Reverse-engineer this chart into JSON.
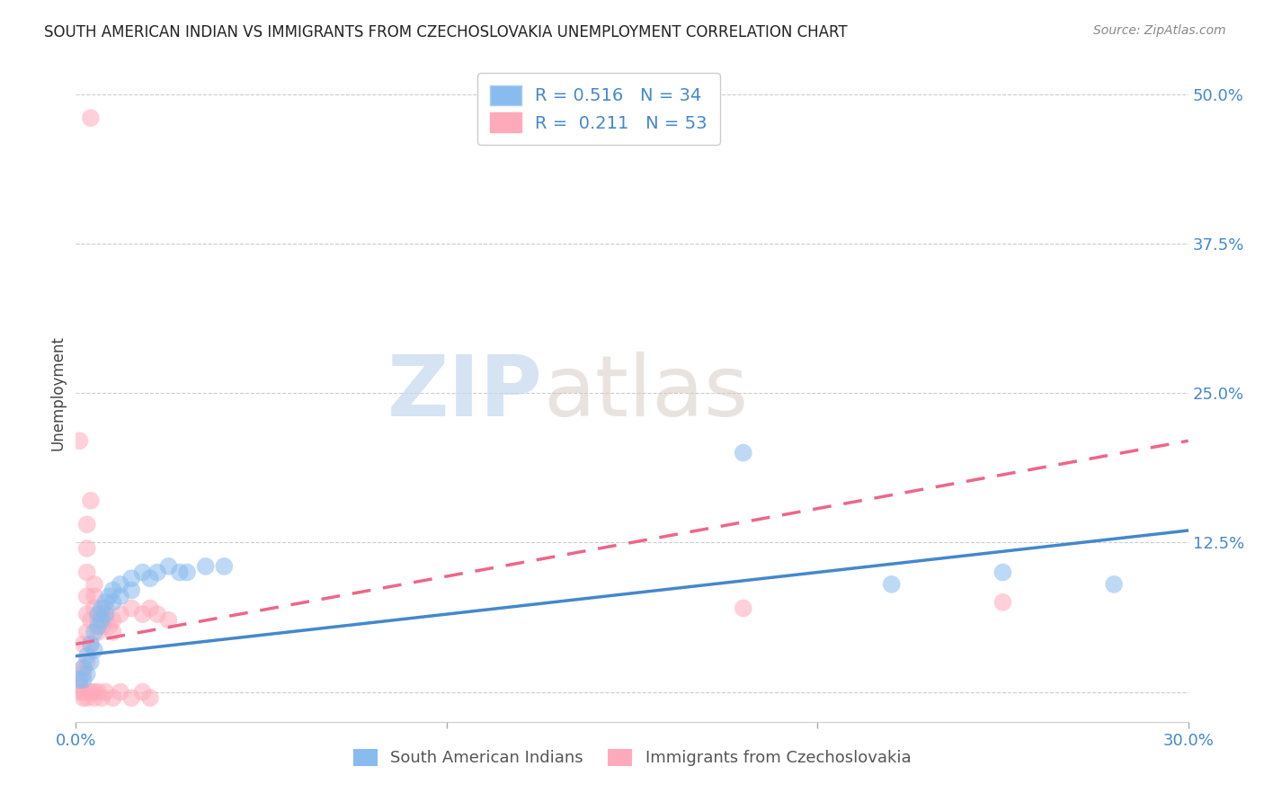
{
  "title": "SOUTH AMERICAN INDIAN VS IMMIGRANTS FROM CZECHOSLOVAKIA UNEMPLOYMENT CORRELATION CHART",
  "source": "Source: ZipAtlas.com",
  "ylabel": "Unemployment",
  "x_min": 0.0,
  "x_max": 0.3,
  "y_min": -0.025,
  "y_max": 0.525,
  "x_ticks": [
    0.0,
    0.1,
    0.2,
    0.3
  ],
  "x_tick_labels": [
    "0.0%",
    "",
    "",
    "30.0%"
  ],
  "y_ticks": [
    0.0,
    0.125,
    0.25,
    0.375,
    0.5
  ],
  "y_tick_labels": [
    "",
    "12.5%",
    "25.0%",
    "37.5%",
    "50.0%"
  ],
  "grid_color": "#cccccc",
  "background_color": "#ffffff",
  "blue_color": "#88bbee",
  "pink_color": "#ffaabb",
  "blue_scatter": [
    [
      0.001,
      0.01
    ],
    [
      0.002,
      0.02
    ],
    [
      0.002,
      0.01
    ],
    [
      0.003,
      0.03
    ],
    [
      0.003,
      0.015
    ],
    [
      0.004,
      0.025
    ],
    [
      0.004,
      0.04
    ],
    [
      0.005,
      0.05
    ],
    [
      0.005,
      0.035
    ],
    [
      0.006,
      0.055
    ],
    [
      0.006,
      0.065
    ],
    [
      0.007,
      0.06
    ],
    [
      0.007,
      0.07
    ],
    [
      0.008,
      0.075
    ],
    [
      0.008,
      0.065
    ],
    [
      0.009,
      0.08
    ],
    [
      0.01,
      0.085
    ],
    [
      0.01,
      0.075
    ],
    [
      0.012,
      0.09
    ],
    [
      0.012,
      0.08
    ],
    [
      0.015,
      0.095
    ],
    [
      0.015,
      0.085
    ],
    [
      0.018,
      0.1
    ],
    [
      0.02,
      0.095
    ],
    [
      0.022,
      0.1
    ],
    [
      0.025,
      0.105
    ],
    [
      0.028,
      0.1
    ],
    [
      0.03,
      0.1
    ],
    [
      0.035,
      0.105
    ],
    [
      0.04,
      0.105
    ],
    [
      0.18,
      0.2
    ],
    [
      0.22,
      0.09
    ],
    [
      0.25,
      0.1
    ],
    [
      0.28,
      0.09
    ]
  ],
  "pink_scatter": [
    [
      0.001,
      0.005
    ],
    [
      0.001,
      0.01
    ],
    [
      0.002,
      0.015
    ],
    [
      0.002,
      0.02
    ],
    [
      0.002,
      0.04
    ],
    [
      0.003,
      0.025
    ],
    [
      0.003,
      0.05
    ],
    [
      0.003,
      0.065
    ],
    [
      0.003,
      0.08
    ],
    [
      0.003,
      0.1
    ],
    [
      0.003,
      0.12
    ],
    [
      0.003,
      0.14
    ],
    [
      0.004,
      0.16
    ],
    [
      0.004,
      0.06
    ],
    [
      0.004,
      0.04
    ],
    [
      0.005,
      0.07
    ],
    [
      0.005,
      0.09
    ],
    [
      0.005,
      0.08
    ],
    [
      0.006,
      0.06
    ],
    [
      0.006,
      0.05
    ],
    [
      0.007,
      0.065
    ],
    [
      0.007,
      0.055
    ],
    [
      0.008,
      0.07
    ],
    [
      0.008,
      0.06
    ],
    [
      0.009,
      0.055
    ],
    [
      0.01,
      0.06
    ],
    [
      0.01,
      0.05
    ],
    [
      0.012,
      0.065
    ],
    [
      0.015,
      0.07
    ],
    [
      0.018,
      0.065
    ],
    [
      0.02,
      0.07
    ],
    [
      0.022,
      0.065
    ],
    [
      0.025,
      0.06
    ],
    [
      0.001,
      0.21
    ],
    [
      0.004,
      0.48
    ],
    [
      0.001,
      0.0
    ],
    [
      0.002,
      0.0
    ],
    [
      0.002,
      -0.005
    ],
    [
      0.003,
      0.0
    ],
    [
      0.003,
      -0.005
    ],
    [
      0.004,
      0.0
    ],
    [
      0.005,
      -0.005
    ],
    [
      0.005,
      0.0
    ],
    [
      0.006,
      0.0
    ],
    [
      0.007,
      -0.005
    ],
    [
      0.008,
      0.0
    ],
    [
      0.01,
      -0.005
    ],
    [
      0.012,
      0.0
    ],
    [
      0.015,
      -0.005
    ],
    [
      0.018,
      0.0
    ],
    [
      0.02,
      -0.005
    ],
    [
      0.18,
      0.07
    ],
    [
      0.25,
      0.075
    ]
  ],
  "blue_R": 0.516,
  "blue_N": 34,
  "pink_R": 0.211,
  "pink_N": 53,
  "blue_line_start_x": 0.0,
  "blue_line_start_y": 0.03,
  "blue_line_end_x": 0.3,
  "blue_line_end_y": 0.135,
  "pink_line_start_x": 0.0,
  "pink_line_start_y": 0.04,
  "pink_line_end_x": 0.3,
  "pink_line_end_y": 0.21,
  "watermark_zip": "ZIP",
  "watermark_atlas": "atlas",
  "legend_label_blue": "South American Indians",
  "legend_label_pink": "Immigrants from Czechoslovakia"
}
